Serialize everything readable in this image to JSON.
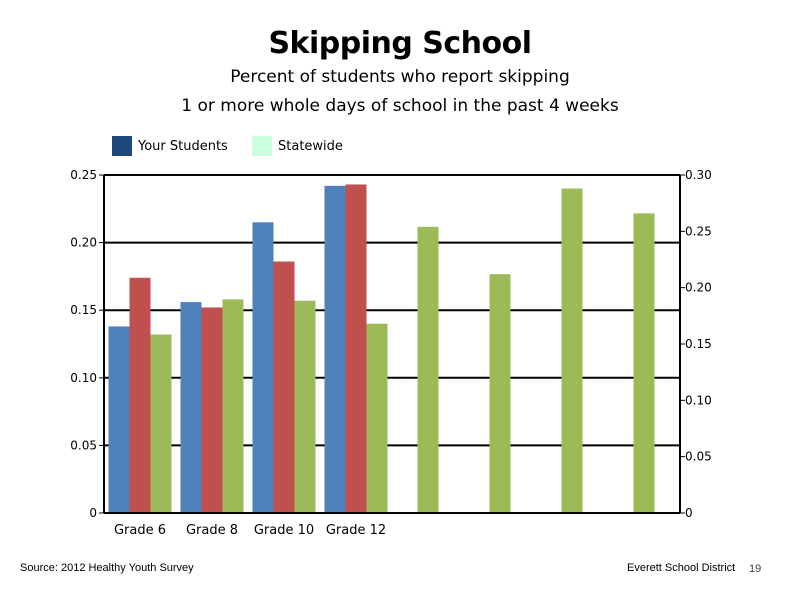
{
  "slide": {
    "title": "Skipping School",
    "subtitle_line1": "Percent of students who report skipping",
    "subtitle_line2": "1 or more whole days of school in the past 4 weeks",
    "source": "Source: 2012 Healthy Youth Survey",
    "district": "Everett School District",
    "page_number": "19"
  },
  "legend": [
    {
      "label": "Your Students",
      "color": "#1F497D"
    },
    {
      "label": "Statewide",
      "color": "#CCFFDD"
    }
  ],
  "chart_data": {
    "type": "bar",
    "categories": [
      "Grade 6",
      "Grade 8",
      "Grade 10",
      "Grade 12"
    ],
    "series": [
      {
        "color": "#4F81BD",
        "axis": "left",
        "values": [
          0.138,
          0.156,
          0.215,
          0.242
        ]
      },
      {
        "color": "#C0504D",
        "axis": "left",
        "values": [
          0.174,
          0.152,
          0.186,
          0.243
        ]
      },
      {
        "color": "#9BBB59",
        "axis": "left",
        "values": [
          0.132,
          0.158,
          0.157,
          0.14
        ]
      },
      {
        "color": "#9BBB59",
        "axis": "right",
        "values": [
          0.254,
          0.212,
          0.288,
          0.266
        ]
      }
    ],
    "left_axis": {
      "min": 0,
      "max": 0.25,
      "ticks": [
        "0",
        "0.05",
        "0.10",
        "0.15",
        "0.20",
        "0.25"
      ],
      "tick_values": [
        0,
        0.05,
        0.1,
        0.15,
        0.2,
        0.25
      ]
    },
    "right_axis": {
      "min": 0,
      "max": 0.3,
      "ticks": [
        "0",
        "0.05",
        "0.10",
        "0.15",
        "0.20",
        "0.25",
        "0.30"
      ],
      "tick_values": [
        0,
        0.05,
        0.1,
        0.15,
        0.2,
        0.25,
        0.3
      ]
    },
    "grid": true,
    "legend_position": "top-left"
  }
}
